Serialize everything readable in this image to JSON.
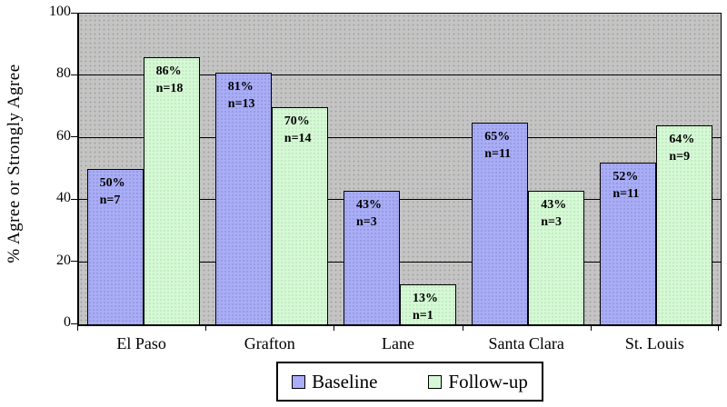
{
  "chart_data": {
    "type": "bar",
    "title": "",
    "ylabel": "% Agree or Strongly Agree",
    "xlabel": "",
    "ylim": [
      0,
      100
    ],
    "yticks": [
      0,
      20,
      40,
      60,
      80,
      100
    ],
    "gridlines": [
      20,
      40,
      60,
      80
    ],
    "grid": "on",
    "legend_position": "bottom-center",
    "plot_background": "#c4c4c4",
    "categories": [
      "El Paso",
      "Grafton",
      "Lane",
      "Santa Clara",
      "St. Louis"
    ],
    "series": [
      {
        "name": "Baseline",
        "color": "#a9adf6",
        "values": [
          50,
          81,
          43,
          65,
          52
        ],
        "n": [
          7,
          13,
          3,
          11,
          11
        ]
      },
      {
        "name": "Follow-up",
        "color": "#d6f8d6",
        "values": [
          86,
          70,
          13,
          43,
          64
        ],
        "n": [
          18,
          14,
          1,
          3,
          9
        ]
      }
    ],
    "bar_label_format": "{value}% / n={n}"
  }
}
